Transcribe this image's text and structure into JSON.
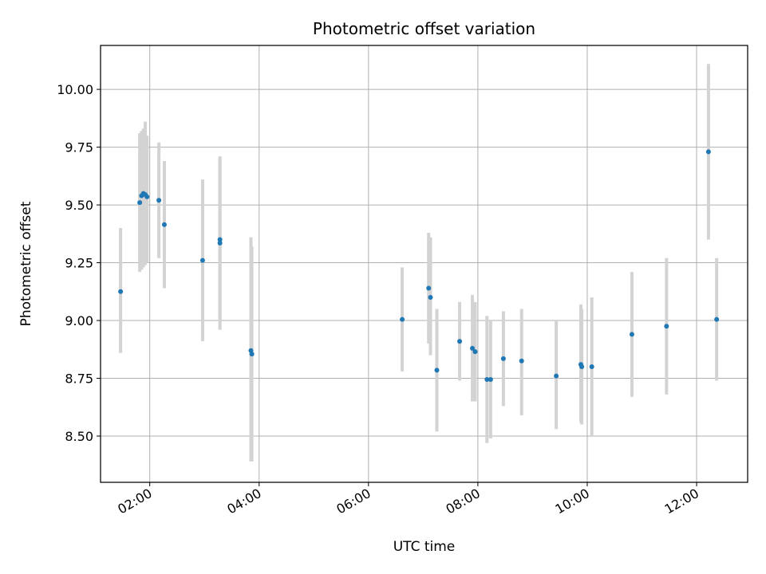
{
  "chart_data": {
    "type": "scatter",
    "title": "Photometric offset variation",
    "xlabel": "UTC time",
    "ylabel": "Photometric offset",
    "xlim": [
      "01:06",
      "12:56"
    ],
    "ylim": [
      8.3,
      10.19
    ],
    "x_ticks": [
      "02:00",
      "04:00",
      "06:00",
      "08:00",
      "10:00",
      "12:00"
    ],
    "y_ticks": [
      "8.50",
      "8.75",
      "9.00",
      "9.25",
      "9.50",
      "9.75",
      "10.00"
    ],
    "grid": true,
    "legend": "none",
    "colors": {
      "points": "#1f77b4",
      "errorbars": "#d3d3d3",
      "grid": "#b0b0b0",
      "axes": "#000000"
    },
    "points": [
      {
        "time": "01:28",
        "y": 9.125,
        "lo": 8.86,
        "hi": 9.4
      },
      {
        "time": "01:49",
        "y": 9.51,
        "lo": 9.21,
        "hi": 9.81
      },
      {
        "time": "01:51",
        "y": 9.54,
        "lo": 9.22,
        "hi": 9.82
      },
      {
        "time": "01:53",
        "y": 9.55,
        "lo": 9.23,
        "hi": 9.83
      },
      {
        "time": "01:55",
        "y": 9.545,
        "lo": 9.24,
        "hi": 9.86
      },
      {
        "time": "01:57",
        "y": 9.535,
        "lo": 9.25,
        "hi": 9.8
      },
      {
        "time": "02:10",
        "y": 9.52,
        "lo": 9.27,
        "hi": 9.77
      },
      {
        "time": "02:16",
        "y": 9.415,
        "lo": 9.14,
        "hi": 9.69
      },
      {
        "time": "02:58",
        "y": 9.26,
        "lo": 8.91,
        "hi": 9.61
      },
      {
        "time": "03:17",
        "y": 9.35,
        "lo": 9.01,
        "hi": 9.71
      },
      {
        "time": "03:17",
        "y": 9.335,
        "lo": 8.96,
        "hi": 9.7
      },
      {
        "time": "03:51",
        "y": 8.87,
        "lo": 8.39,
        "hi": 9.36
      },
      {
        "time": "03:52",
        "y": 8.855,
        "lo": 8.39,
        "hi": 9.32
      },
      {
        "time": "06:37",
        "y": 9.005,
        "lo": 8.78,
        "hi": 9.23
      },
      {
        "time": "07:06",
        "y": 9.14,
        "lo": 8.9,
        "hi": 9.38
      },
      {
        "time": "07:08",
        "y": 9.1,
        "lo": 8.85,
        "hi": 9.36
      },
      {
        "time": "07:15",
        "y": 8.785,
        "lo": 8.52,
        "hi": 9.05
      },
      {
        "time": "07:40",
        "y": 8.91,
        "lo": 8.74,
        "hi": 9.08
      },
      {
        "time": "07:54",
        "y": 8.88,
        "lo": 8.65,
        "hi": 9.11
      },
      {
        "time": "07:57",
        "y": 8.865,
        "lo": 8.65,
        "hi": 9.08
      },
      {
        "time": "08:10",
        "y": 8.745,
        "lo": 8.47,
        "hi": 9.02
      },
      {
        "time": "08:14",
        "y": 8.745,
        "lo": 8.49,
        "hi": 9.0
      },
      {
        "time": "08:28",
        "y": 8.835,
        "lo": 8.63,
        "hi": 9.04
      },
      {
        "time": "08:48",
        "y": 8.825,
        "lo": 8.59,
        "hi": 9.05
      },
      {
        "time": "09:26",
        "y": 8.76,
        "lo": 8.53,
        "hi": 9.0
      },
      {
        "time": "09:53",
        "y": 8.81,
        "lo": 8.56,
        "hi": 9.07
      },
      {
        "time": "09:54",
        "y": 8.8,
        "lo": 8.55,
        "hi": 9.05
      },
      {
        "time": "10:05",
        "y": 8.8,
        "lo": 8.5,
        "hi": 9.1
      },
      {
        "time": "10:49",
        "y": 8.94,
        "lo": 8.67,
        "hi": 9.21
      },
      {
        "time": "11:27",
        "y": 8.975,
        "lo": 8.68,
        "hi": 9.27
      },
      {
        "time": "12:13",
        "y": 9.73,
        "lo": 9.35,
        "hi": 10.11
      },
      {
        "time": "12:22",
        "y": 9.005,
        "lo": 8.74,
        "hi": 9.27
      }
    ]
  }
}
